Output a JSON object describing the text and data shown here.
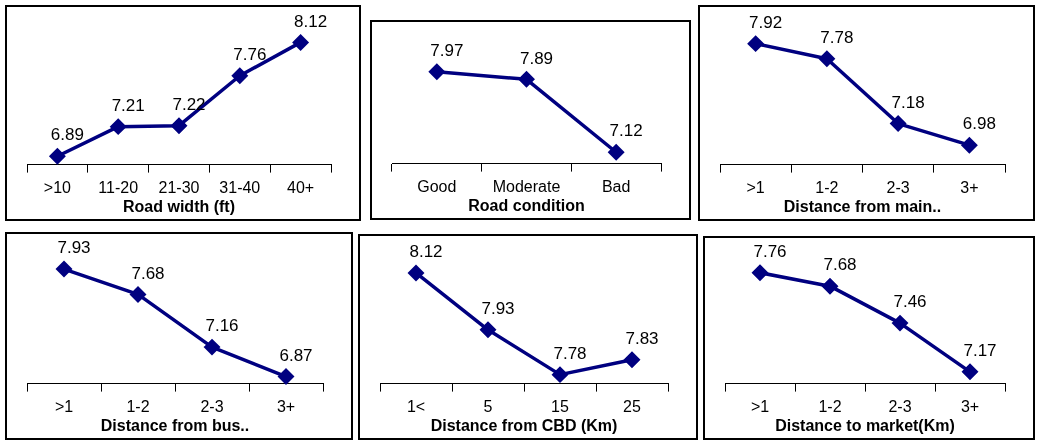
{
  "chart_data": [
    {
      "type": "line",
      "xlabel": "Road width (ft)",
      "categories": [
        ">10",
        "11-20",
        "21-30",
        "31-40",
        "40+"
      ],
      "series": [
        {
          "color": "#000080",
          "values": [
            6.89,
            7.21,
            7.22,
            7.76,
            8.12
          ]
        }
      ],
      "data_labels": true,
      "marker": "diamond",
      "line_style": "solid"
    },
    {
      "type": "line",
      "xlabel": "Road condition",
      "categories": [
        "Good",
        "Moderate",
        "Bad"
      ],
      "series": [
        {
          "color": "#000080",
          "values": [
            7.97,
            7.89,
            7.12
          ]
        }
      ],
      "data_labels": true,
      "marker": "diamond",
      "line_style": "solid"
    },
    {
      "type": "line",
      "xlabel": "Distance from main..",
      "categories": [
        ">1",
        "1-2",
        "2-3",
        "3+"
      ],
      "series": [
        {
          "color": "#000080",
          "values": [
            7.92,
            7.78,
            7.18,
            6.98
          ]
        }
      ],
      "data_labels": true,
      "marker": "diamond",
      "line_style": "solid"
    },
    {
      "type": "line",
      "xlabel": "Distance from bus..",
      "categories": [
        ">1",
        "1-2",
        "2-3",
        "3+"
      ],
      "series": [
        {
          "color": "#000080",
          "values": [
            7.93,
            7.68,
            7.16,
            6.87
          ]
        }
      ],
      "data_labels": true,
      "marker": "diamond",
      "line_style": "solid"
    },
    {
      "type": "line",
      "xlabel": "Distance from CBD (Km)",
      "categories": [
        "1<",
        "5",
        "15",
        "25"
      ],
      "series": [
        {
          "color": "#000080",
          "values": [
            8.12,
            7.93,
            7.78,
            7.83
          ]
        }
      ],
      "data_labels": true,
      "marker": "diamond",
      "line_style": "solid"
    },
    {
      "type": "line",
      "xlabel": "Distance to market(Km)",
      "categories": [
        ">1",
        "1-2",
        "2-3",
        "3+"
      ],
      "series": [
        {
          "color": "#000080",
          "values": [
            7.76,
            7.68,
            7.46,
            7.17
          ]
        }
      ],
      "data_labels": true,
      "marker": "diamond",
      "line_style": "solid"
    }
  ]
}
